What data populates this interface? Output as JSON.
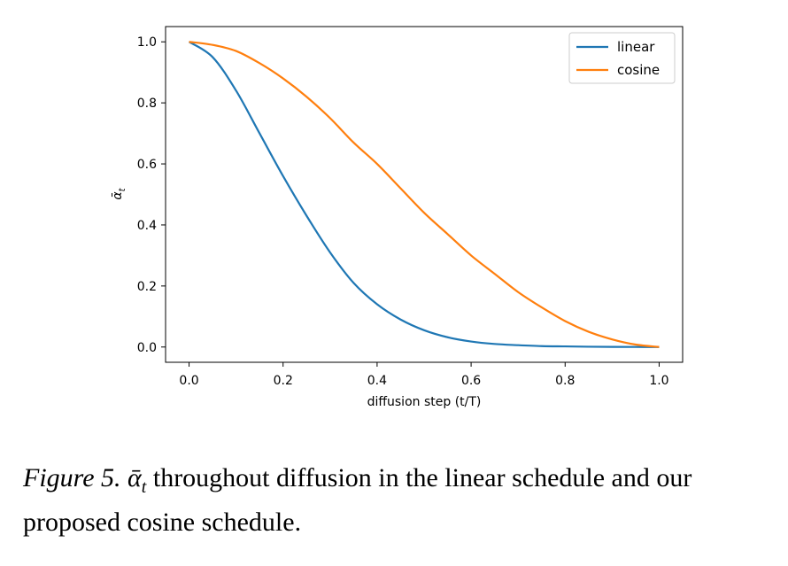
{
  "chart_data": {
    "type": "line",
    "xlabel": "diffusion step (t/T)",
    "ylabel_symbol": "ᾱ",
    "ylabel_subscript": "t",
    "xlim": [
      -0.05,
      1.05
    ],
    "ylim": [
      -0.05,
      1.05
    ],
    "xticks": [
      0.0,
      0.2,
      0.4,
      0.6,
      0.8,
      1.0
    ],
    "xtick_labels": [
      "0.0",
      "0.2",
      "0.4",
      "0.6",
      "0.8",
      "1.0"
    ],
    "yticks": [
      0.0,
      0.2,
      0.4,
      0.6,
      0.8,
      1.0
    ],
    "ytick_labels": [
      "0.0",
      "0.2",
      "0.4",
      "0.6",
      "0.8",
      "1.0"
    ],
    "grid": false,
    "legend_position": "top-right",
    "x": [
      0.0,
      0.05,
      0.1,
      0.15,
      0.2,
      0.25,
      0.3,
      0.35,
      0.4,
      0.45,
      0.5,
      0.55,
      0.6,
      0.65,
      0.7,
      0.75,
      0.8,
      0.85,
      0.9,
      0.95,
      1.0
    ],
    "series": [
      {
        "name": "linear",
        "color": "#1f77b4",
        "values": [
          1.0,
          0.95,
          0.84,
          0.7,
          0.56,
          0.43,
          0.31,
          0.21,
          0.14,
          0.09,
          0.055,
          0.032,
          0.018,
          0.01,
          0.006,
          0.003,
          0.002,
          0.001,
          0.0005,
          0.0002,
          0.0
        ]
      },
      {
        "name": "cosine",
        "color": "#ff7f0e",
        "values": [
          1.0,
          0.99,
          0.97,
          0.93,
          0.88,
          0.82,
          0.75,
          0.67,
          0.6,
          0.52,
          0.44,
          0.37,
          0.3,
          0.24,
          0.18,
          0.13,
          0.085,
          0.05,
          0.025,
          0.008,
          0.0
        ]
      }
    ]
  },
  "caption": {
    "figure_label": "Figure 5.",
    "math_symbol": "ᾱ",
    "math_subscript": "t",
    "text_line1": " throughout diffusion in the linear schedule and our",
    "text_line2": "proposed cosine schedule."
  }
}
